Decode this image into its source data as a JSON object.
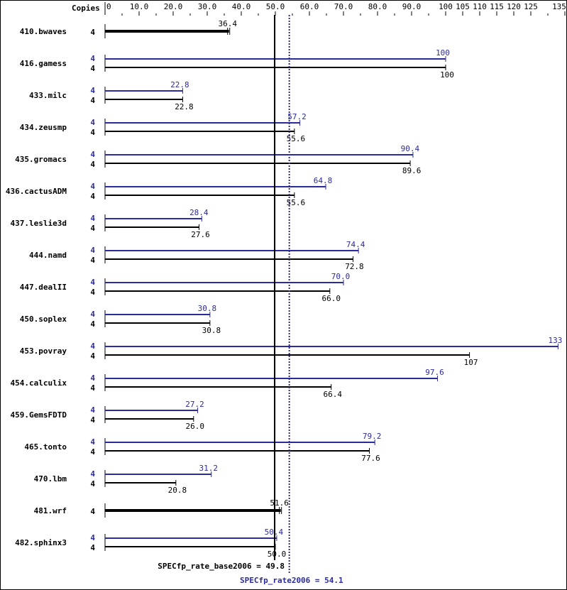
{
  "chart_data": {
    "type": "bar",
    "orientation": "horizontal",
    "title": "",
    "xlabel": "",
    "ylabel": "",
    "axis_header": "Copies",
    "xlim": [
      0,
      135
    ],
    "x_ticks": [
      {
        "value": 0,
        "label": "0"
      },
      {
        "value": 10,
        "label": "10.0"
      },
      {
        "value": 20,
        "label": "20.0"
      },
      {
        "value": 30,
        "label": "30.0"
      },
      {
        "value": 40,
        "label": "40.0"
      },
      {
        "value": 50,
        "label": "50.0"
      },
      {
        "value": 60,
        "label": "60.0"
      },
      {
        "value": 70,
        "label": "70.0"
      },
      {
        "value": 80,
        "label": "80.0"
      },
      {
        "value": 90,
        "label": "90.0"
      },
      {
        "value": 100,
        "label": "100"
      },
      {
        "value": 105,
        "label": "105"
      },
      {
        "value": 110,
        "label": "110"
      },
      {
        "value": 115,
        "label": "115"
      },
      {
        "value": 120,
        "label": "120"
      },
      {
        "value": 125,
        "label": "125"
      },
      {
        "value": 135,
        "label": "135"
      }
    ],
    "minor_ticks": [
      5,
      15,
      25,
      35,
      45,
      55,
      65,
      75,
      85,
      95,
      130
    ],
    "colors": {
      "base": "#000000",
      "peak": "#2b2b9e"
    },
    "series": [
      {
        "name": "base",
        "color": "#000000"
      },
      {
        "name": "peak",
        "color": "#2b2b9e"
      }
    ],
    "benchmarks": [
      {
        "name": "410.bwaves",
        "base_copies": 4,
        "base": 36.4,
        "peak_copies": null,
        "peak": null,
        "combined": true
      },
      {
        "name": "416.gamess",
        "base_copies": 4,
        "base": 100,
        "peak_copies": 4,
        "peak": 100
      },
      {
        "name": "433.milc",
        "base_copies": 4,
        "base": 22.8,
        "peak_copies": 4,
        "peak": 22.8
      },
      {
        "name": "434.zeusmp",
        "base_copies": 4,
        "base": 55.6,
        "peak_copies": 4,
        "peak": 57.2
      },
      {
        "name": "435.gromacs",
        "base_copies": 4,
        "base": 89.6,
        "peak_copies": 4,
        "peak": 90.4
      },
      {
        "name": "436.cactusADM",
        "base_copies": 4,
        "base": 55.6,
        "peak_copies": 4,
        "peak": 64.8
      },
      {
        "name": "437.leslie3d",
        "base_copies": 4,
        "base": 27.6,
        "peak_copies": 4,
        "peak": 28.4
      },
      {
        "name": "444.namd",
        "base_copies": 4,
        "base": 72.8,
        "peak_copies": 4,
        "peak": 74.4
      },
      {
        "name": "447.dealII",
        "base_copies": 4,
        "base": 66.0,
        "peak_copies": 4,
        "peak": 70.0
      },
      {
        "name": "450.soplex",
        "base_copies": 4,
        "base": 30.8,
        "peak_copies": 4,
        "peak": 30.8
      },
      {
        "name": "453.povray",
        "base_copies": 4,
        "base": 107,
        "peak_copies": 4,
        "peak": 133
      },
      {
        "name": "454.calculix",
        "base_copies": 4,
        "base": 66.4,
        "peak_copies": 4,
        "peak": 97.6
      },
      {
        "name": "459.GemsFDTD",
        "base_copies": 4,
        "base": 26.0,
        "peak_copies": 4,
        "peak": 27.2
      },
      {
        "name": "465.tonto",
        "base_copies": 4,
        "base": 77.6,
        "peak_copies": 4,
        "peak": 79.2
      },
      {
        "name": "470.lbm",
        "base_copies": 4,
        "base": 20.8,
        "peak_copies": 4,
        "peak": 31.2
      },
      {
        "name": "481.wrf",
        "base_copies": 4,
        "base": 51.6,
        "peak_copies": null,
        "peak": null,
        "combined": true
      },
      {
        "name": "482.sphinx3",
        "base_copies": 4,
        "base": 50.0,
        "peak_copies": 4,
        "peak": 50.4
      }
    ],
    "reference_lines": [
      {
        "name": "SPECfp_rate_base2006",
        "value": 49.8,
        "label": "SPECfp_rate_base2006 = 49.8",
        "style": "solid",
        "color": "#000000"
      },
      {
        "name": "SPECfp_rate2006",
        "value": 54.1,
        "label": "SPECfp_rate2006 = 54.1",
        "style": "dotted",
        "color": "#2b2b9e"
      }
    ],
    "grid": false,
    "legend": null
  }
}
